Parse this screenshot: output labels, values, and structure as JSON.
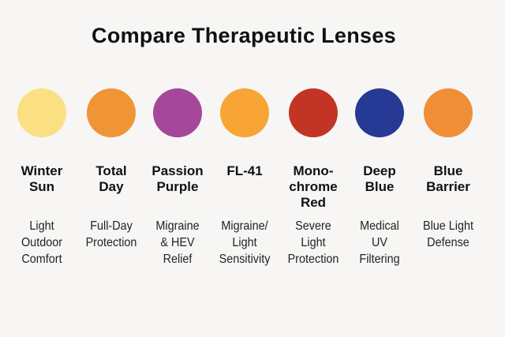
{
  "title": "Compare Therapeutic Lenses",
  "lenses": [
    {
      "name": "Winter\nSun",
      "description": "Light\nOutdoor\nComfort",
      "color": "#fbdf83"
    },
    {
      "name": "Total\nDay",
      "description": "Full-Day\nProtection",
      "color": "#ef9535"
    },
    {
      "name": "Passion\nPurple",
      "description": "Migraine\n& HEV\nRelief",
      "color": "#a5479a"
    },
    {
      "name": "FL-41",
      "description": "Migraine/\nLight\nSensitivity",
      "color": "#f8a535"
    },
    {
      "name": "Mono-\nchrome\nRed",
      "description": "Severe\nLight\nProtection",
      "color": "#c23424"
    },
    {
      "name": "Deep\nBlue",
      "description": "Medical\nUV\nFiltering",
      "color": "#263a95"
    },
    {
      "name": "Blue\nBarrier",
      "description": "Blue Light\nDefense",
      "color": "#ee8f38"
    }
  ]
}
